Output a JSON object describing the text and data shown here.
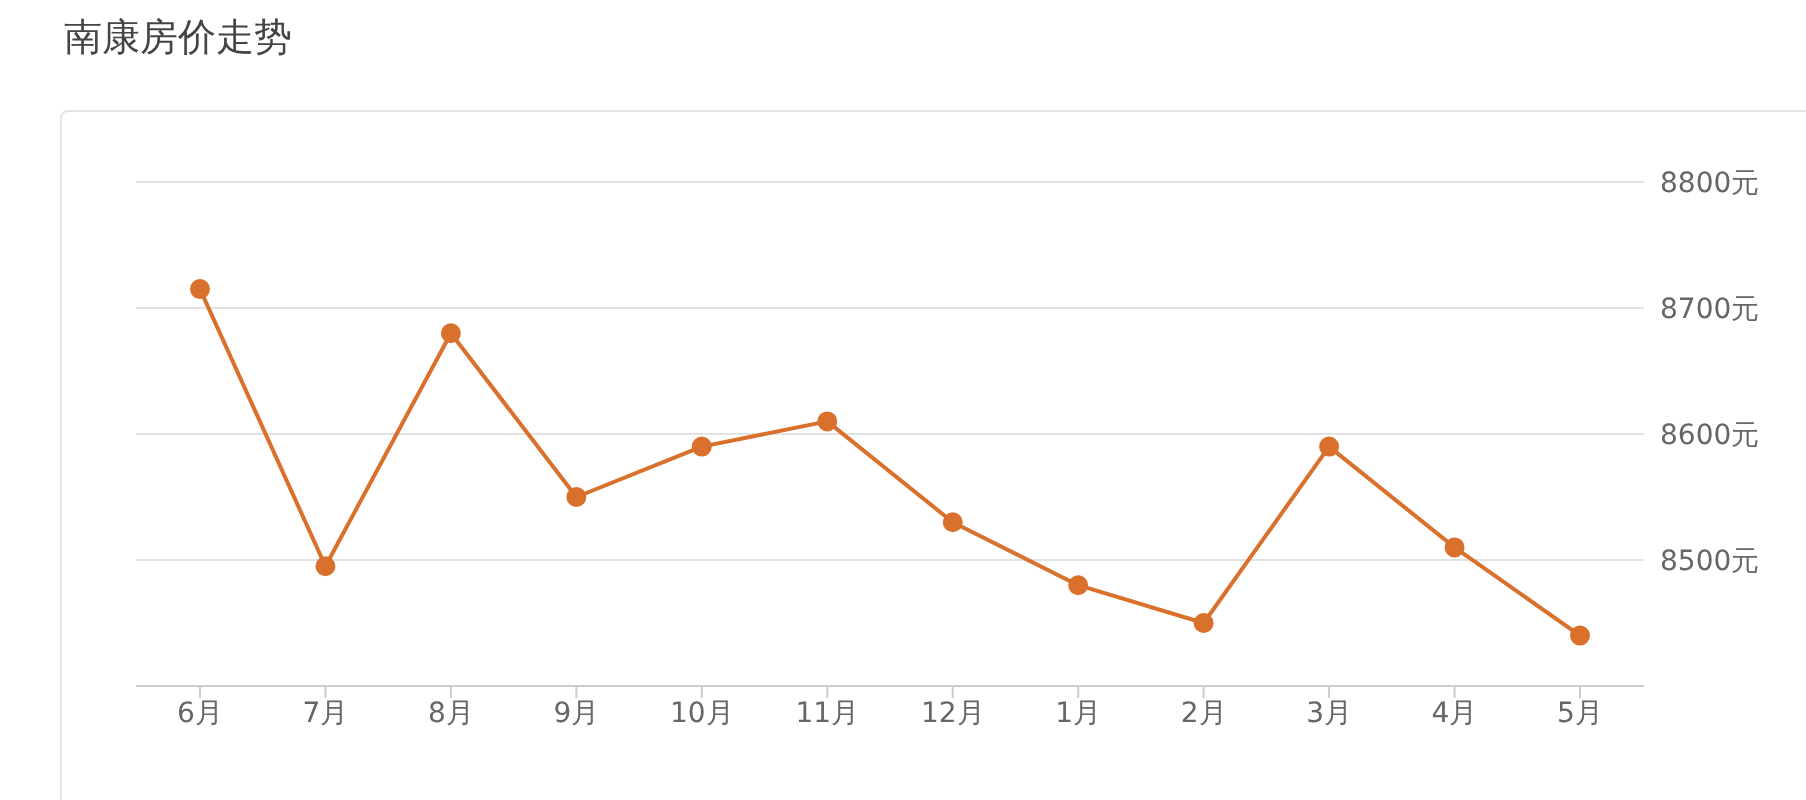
{
  "chart_data": {
    "type": "line",
    "title": "南康房价走势",
    "categories": [
      "6月",
      "7月",
      "8月",
      "9月",
      "10月",
      "11月",
      "12月",
      "1月",
      "2月",
      "3月",
      "4月",
      "5月"
    ],
    "values": [
      8715,
      8495,
      8680,
      8550,
      8590,
      8610,
      8530,
      8480,
      8450,
      8590,
      8510,
      8440
    ],
    "color": "#d9702c",
    "ylim": [
      8400,
      8800
    ],
    "yticks": [
      {
        "value": 8500,
        "label": "8500元"
      },
      {
        "value": 8600,
        "label": "8600元"
      },
      {
        "value": 8700,
        "label": "8700元"
      },
      {
        "value": 8800,
        "label": "8800元"
      }
    ],
    "grid": "y",
    "marker": "circle",
    "legend": false
  }
}
